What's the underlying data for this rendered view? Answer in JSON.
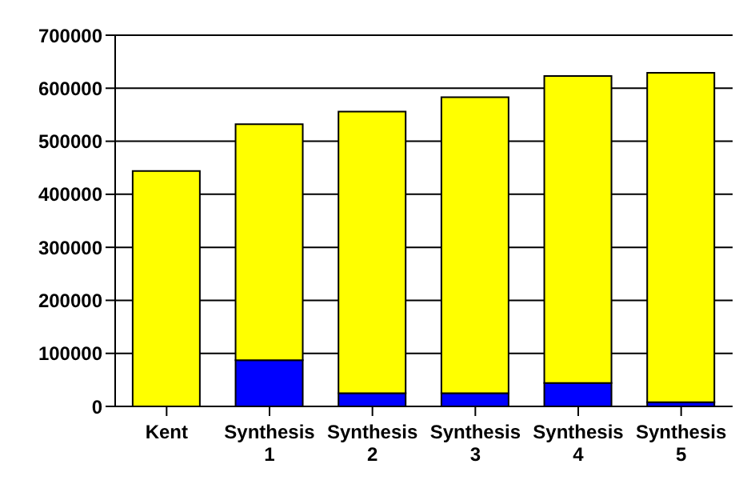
{
  "chart_data": {
    "type": "bar",
    "stacked": true,
    "categories": [
      "Kent",
      "Synthesis 1",
      "Synthesis 2",
      "Synthesis 3",
      "Synthesis 4",
      "Synthesis 5"
    ],
    "series": [
      {
        "color": "#0000ff",
        "values": [
          null,
          87000,
          25000,
          25000,
          44000,
          8000
        ]
      },
      {
        "color": "#ffff00",
        "values": [
          444000,
          445000,
          531000,
          558000,
          579000,
          621000
        ]
      }
    ],
    "ylim": [
      0,
      700000
    ],
    "yticks": [
      0,
      100000,
      200000,
      300000,
      400000,
      500000,
      600000,
      700000
    ],
    "grid": "y",
    "legend": false
  }
}
